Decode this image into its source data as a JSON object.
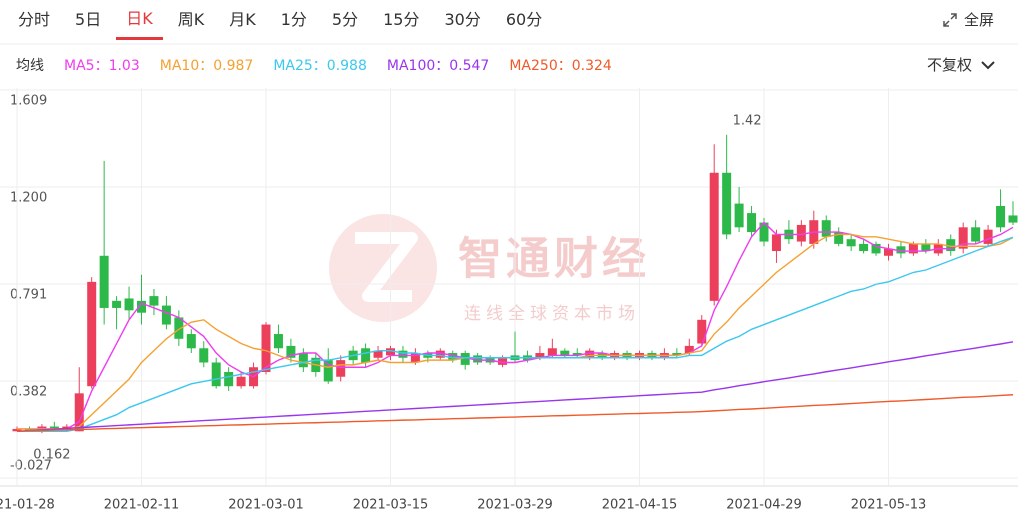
{
  "ui": {
    "tabs": [
      {
        "label": "分时",
        "active": false
      },
      {
        "label": "5日",
        "active": false
      },
      {
        "label": "日K",
        "active": true
      },
      {
        "label": "周K",
        "active": false
      },
      {
        "label": "月K",
        "active": false
      },
      {
        "label": "1分",
        "active": false
      },
      {
        "label": "5分",
        "active": false
      },
      {
        "label": "15分",
        "active": false
      },
      {
        "label": "30分",
        "active": false
      },
      {
        "label": "60分",
        "active": false
      }
    ],
    "fullscreen": "全屏",
    "ma_label": "均线",
    "adjust": "不复权"
  },
  "chart_data": {
    "type": "candlestick",
    "watermark": {
      "brand": "智通财经",
      "slogan": "连线全球资本市场"
    },
    "categories": [
      "2021-01-28",
      null,
      null,
      null,
      null,
      null,
      null,
      null,
      null,
      null,
      "2021-02-11",
      null,
      null,
      null,
      null,
      null,
      null,
      null,
      null,
      null,
      "2021-03-01",
      null,
      null,
      null,
      null,
      null,
      null,
      null,
      null,
      null,
      "2021-03-15",
      null,
      null,
      null,
      null,
      null,
      null,
      null,
      null,
      null,
      "2021-03-29",
      null,
      null,
      null,
      null,
      null,
      null,
      null,
      null,
      null,
      "2021-04-15",
      null,
      null,
      null,
      null,
      null,
      null,
      null,
      null,
      null,
      "2021-04-29",
      null,
      null,
      null,
      null,
      null,
      null,
      null,
      null,
      null,
      "2021-05-13",
      null,
      null,
      null,
      null,
      null,
      null,
      null,
      null,
      null,
      null
    ],
    "up_color": "#ec3f5c",
    "down_color": "#2db84a",
    "candles": {
      "open": [
        0.17,
        0.18,
        0.17,
        0.19,
        0.18,
        0.17,
        0.36,
        0.91,
        0.72,
        0.73,
        0.72,
        0.74,
        0.7,
        0.65,
        0.58,
        0.52,
        0.46,
        0.42,
        0.36,
        0.36,
        0.42,
        0.58,
        0.53,
        0.5,
        0.48,
        0.47,
        0.4,
        0.51,
        0.52,
        0.48,
        0.49,
        0.51,
        0.46,
        0.5,
        0.48,
        0.5,
        0.5,
        0.49,
        0.48,
        0.45,
        0.49,
        0.49,
        0.48,
        0.49,
        0.51,
        0.5,
        0.48,
        0.5,
        0.48,
        0.5,
        0.48,
        0.5,
        0.48,
        0.5,
        0.5,
        0.54,
        0.72,
        1.26,
        1.13,
        1.09,
        1.05,
        0.93,
        1.02,
        0.97,
        0.96,
        1.06,
        1.01,
        0.98,
        0.96,
        0.96,
        0.91,
        0.95,
        0.92,
        0.96,
        0.92,
        0.98,
        0.94,
        1.03,
        0.96,
        1.12,
        1.08
      ],
      "high": [
        0.19,
        0.19,
        0.2,
        0.21,
        0.2,
        0.44,
        0.82,
        1.31,
        0.74,
        0.78,
        0.83,
        0.77,
        0.74,
        0.68,
        0.6,
        0.55,
        0.48,
        0.44,
        0.42,
        0.46,
        0.63,
        0.62,
        0.56,
        0.52,
        0.5,
        0.52,
        0.49,
        0.53,
        0.54,
        0.53,
        0.53,
        0.53,
        0.52,
        0.51,
        0.52,
        0.51,
        0.51,
        0.5,
        0.49,
        0.49,
        0.59,
        0.51,
        0.53,
        0.56,
        0.52,
        0.52,
        0.52,
        0.51,
        0.51,
        0.51,
        0.51,
        0.51,
        0.52,
        0.52,
        0.56,
        0.66,
        1.38,
        1.42,
        1.2,
        1.12,
        1.07,
        1.02,
        1.06,
        1.06,
        1.1,
        1.08,
        1.03,
        1.0,
        0.98,
        0.97,
        0.96,
        0.97,
        0.97,
        0.98,
        0.98,
        1.0,
        1.05,
        1.06,
        1.04,
        1.19,
        1.14
      ],
      "low": [
        0.17,
        0.17,
        0.162,
        0.17,
        0.17,
        0.17,
        0.35,
        0.62,
        0.6,
        0.64,
        0.62,
        0.66,
        0.6,
        0.53,
        0.5,
        0.44,
        0.35,
        0.34,
        0.35,
        0.35,
        0.41,
        0.5,
        0.46,
        0.42,
        0.4,
        0.37,
        0.38,
        0.45,
        0.44,
        0.47,
        0.47,
        0.46,
        0.45,
        0.46,
        0.47,
        0.46,
        0.43,
        0.45,
        0.45,
        0.44,
        0.46,
        0.46,
        0.47,
        0.48,
        0.48,
        0.48,
        0.47,
        0.47,
        0.47,
        0.47,
        0.47,
        0.47,
        0.47,
        0.48,
        0.49,
        0.53,
        0.7,
        0.98,
        1.01,
        0.99,
        0.95,
        0.88,
        0.96,
        0.95,
        0.94,
        0.97,
        0.95,
        0.93,
        0.92,
        0.91,
        0.89,
        0.9,
        0.91,
        0.92,
        0.91,
        0.91,
        0.92,
        0.96,
        0.95,
        1.01,
        1.04
      ],
      "close": [
        0.18,
        0.17,
        0.19,
        0.18,
        0.19,
        0.33,
        0.8,
        0.69,
        0.69,
        0.68,
        0.67,
        0.7,
        0.62,
        0.56,
        0.52,
        0.46,
        0.36,
        0.36,
        0.4,
        0.44,
        0.62,
        0.52,
        0.48,
        0.44,
        0.42,
        0.38,
        0.47,
        0.47,
        0.46,
        0.51,
        0.52,
        0.48,
        0.5,
        0.48,
        0.51,
        0.47,
        0.45,
        0.46,
        0.46,
        0.48,
        0.47,
        0.47,
        0.5,
        0.52,
        0.49,
        0.49,
        0.51,
        0.48,
        0.5,
        0.48,
        0.5,
        0.48,
        0.5,
        0.49,
        0.53,
        0.64,
        1.26,
        1.0,
        1.03,
        1.01,
        0.97,
        1.0,
        0.98,
        1.04,
        1.06,
        0.99,
        0.96,
        0.95,
        0.93,
        0.92,
        0.94,
        0.92,
        0.96,
        0.93,
        0.96,
        0.93,
        1.03,
        0.97,
        1.02,
        1.03,
        1.05
      ]
    },
    "lines": [
      {
        "name": "MA5：1.03",
        "color": "#f03cf0",
        "values": [
          0.18,
          0.18,
          0.18,
          0.18,
          0.18,
          0.21,
          0.34,
          0.44,
          0.54,
          0.64,
          0.71,
          0.69,
          0.67,
          0.65,
          0.61,
          0.57,
          0.5,
          0.45,
          0.42,
          0.4,
          0.44,
          0.47,
          0.49,
          0.5,
          0.5,
          0.45,
          0.44,
          0.44,
          0.44,
          0.46,
          0.49,
          0.49,
          0.49,
          0.5,
          0.5,
          0.49,
          0.48,
          0.47,
          0.47,
          0.46,
          0.46,
          0.47,
          0.48,
          0.49,
          0.49,
          0.49,
          0.5,
          0.5,
          0.49,
          0.49,
          0.49,
          0.49,
          0.49,
          0.49,
          0.5,
          0.53,
          0.68,
          0.78,
          0.89,
          0.99,
          1.05,
          1.0,
          1.0,
          1.0,
          1.01,
          1.01,
          1.01,
          1.0,
          0.98,
          0.95,
          0.94,
          0.93,
          0.93,
          0.93,
          0.94,
          0.94,
          0.96,
          0.96,
          0.98,
          1.0,
          1.03
        ]
      },
      {
        "name": "MA10：0.987",
        "color": "#f5a132",
        "values": [
          0.18,
          0.18,
          0.18,
          0.18,
          0.18,
          0.19,
          0.24,
          0.29,
          0.34,
          0.39,
          0.46,
          0.51,
          0.56,
          0.6,
          0.63,
          0.64,
          0.6,
          0.57,
          0.54,
          0.52,
          0.51,
          0.49,
          0.47,
          0.46,
          0.45,
          0.44,
          0.45,
          0.45,
          0.46,
          0.47,
          0.46,
          0.46,
          0.46,
          0.47,
          0.47,
          0.47,
          0.48,
          0.48,
          0.48,
          0.48,
          0.48,
          0.48,
          0.48,
          0.48,
          0.48,
          0.48,
          0.49,
          0.49,
          0.49,
          0.49,
          0.49,
          0.49,
          0.49,
          0.49,
          0.5,
          0.51,
          0.58,
          0.63,
          0.69,
          0.74,
          0.79,
          0.84,
          0.88,
          0.92,
          0.96,
          0.99,
          1.0,
          1.0,
          0.99,
          0.99,
          0.98,
          0.97,
          0.96,
          0.96,
          0.96,
          0.95,
          0.95,
          0.95,
          0.95,
          0.96,
          0.987
        ]
      },
      {
        "name": "MA25：0.988",
        "color": "#3cc8ee",
        "values": [
          0.17,
          0.17,
          0.17,
          0.17,
          0.17,
          0.18,
          0.2,
          0.22,
          0.24,
          0.27,
          0.29,
          0.31,
          0.33,
          0.35,
          0.37,
          0.38,
          0.39,
          0.4,
          0.41,
          0.42,
          0.43,
          0.44,
          0.45,
          0.46,
          0.47,
          0.47,
          0.48,
          0.49,
          0.5,
          0.51,
          0.51,
          0.5,
          0.5,
          0.49,
          0.49,
          0.48,
          0.48,
          0.48,
          0.48,
          0.48,
          0.48,
          0.48,
          0.48,
          0.48,
          0.48,
          0.48,
          0.48,
          0.48,
          0.48,
          0.48,
          0.48,
          0.48,
          0.48,
          0.48,
          0.49,
          0.49,
          0.52,
          0.55,
          0.57,
          0.6,
          0.62,
          0.64,
          0.66,
          0.68,
          0.7,
          0.72,
          0.74,
          0.76,
          0.77,
          0.79,
          0.8,
          0.82,
          0.84,
          0.85,
          0.87,
          0.89,
          0.91,
          0.93,
          0.95,
          0.97,
          0.988
        ]
      },
      {
        "name": "MA100：0.547",
        "color": "#9a35ee",
        "values": [
          0.17,
          0.173,
          0.176,
          0.179,
          0.182,
          0.185,
          0.188,
          0.191,
          0.194,
          0.197,
          0.2,
          0.203,
          0.206,
          0.209,
          0.212,
          0.215,
          0.218,
          0.221,
          0.224,
          0.227,
          0.23,
          0.233,
          0.236,
          0.239,
          0.242,
          0.245,
          0.248,
          0.251,
          0.254,
          0.257,
          0.26,
          0.263,
          0.266,
          0.269,
          0.272,
          0.275,
          0.278,
          0.281,
          0.284,
          0.287,
          0.29,
          0.293,
          0.296,
          0.299,
          0.302,
          0.305,
          0.308,
          0.311,
          0.314,
          0.317,
          0.32,
          0.323,
          0.326,
          0.329,
          0.332,
          0.335,
          0.345,
          0.353,
          0.362,
          0.37,
          0.379,
          0.387,
          0.395,
          0.404,
          0.412,
          0.421,
          0.429,
          0.437,
          0.446,
          0.454,
          0.463,
          0.471,
          0.479,
          0.488,
          0.496,
          0.505,
          0.513,
          0.521,
          0.53,
          0.538,
          0.547
        ]
      },
      {
        "name": "MA250：0.324",
        "color": "#f05a2a",
        "values": [
          0.17,
          0.172,
          0.173,
          0.175,
          0.176,
          0.178,
          0.179,
          0.181,
          0.182,
          0.184,
          0.185,
          0.187,
          0.188,
          0.19,
          0.191,
          0.193,
          0.194,
          0.196,
          0.197,
          0.199,
          0.2,
          0.202,
          0.203,
          0.205,
          0.206,
          0.208,
          0.209,
          0.211,
          0.212,
          0.214,
          0.215,
          0.217,
          0.218,
          0.22,
          0.221,
          0.223,
          0.224,
          0.226,
          0.227,
          0.229,
          0.23,
          0.232,
          0.233,
          0.235,
          0.236,
          0.238,
          0.239,
          0.241,
          0.242,
          0.244,
          0.245,
          0.247,
          0.248,
          0.25,
          0.251,
          0.253,
          0.256,
          0.259,
          0.262,
          0.264,
          0.267,
          0.27,
          0.273,
          0.276,
          0.279,
          0.281,
          0.284,
          0.287,
          0.29,
          0.293,
          0.296,
          0.298,
          0.301,
          0.304,
          0.307,
          0.31,
          0.313,
          0.315,
          0.318,
          0.321,
          0.324
        ]
      }
    ],
    "ylim": [
      -0.027,
      1.609
    ],
    "yticks": [
      -0.027,
      0.382,
      0.791,
      {
        "value": 1.2,
        "label": "1.200"
      },
      1.609
    ],
    "grid": true
  }
}
